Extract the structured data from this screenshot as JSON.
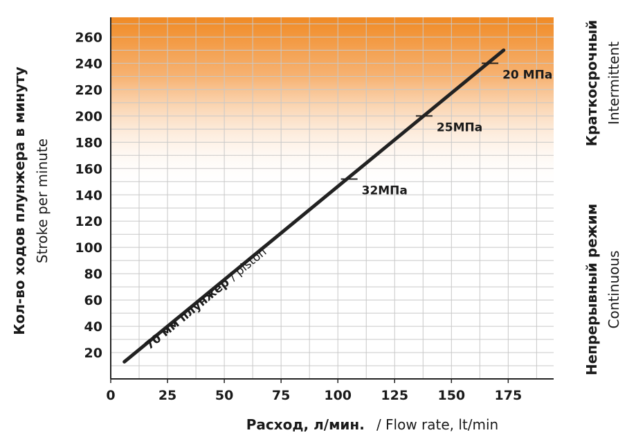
{
  "chart_data": {
    "type": "line",
    "x_axis": {
      "label_primary": "Расход, л/мин.",
      "label_secondary": "/ Flow rate, lt/min",
      "ticks": [
        0,
        25,
        50,
        75,
        100,
        125,
        150,
        175
      ],
      "range": [
        0,
        195
      ]
    },
    "y_axis": {
      "label_primary": "Кол-во ходов плунжера в минуту",
      "label_secondary": "Stroke per minute",
      "ticks": [
        20,
        40,
        60,
        80,
        100,
        120,
        140,
        160,
        180,
        200,
        220,
        240,
        260
      ],
      "range": [
        0,
        275
      ]
    },
    "grid": true,
    "regions": [
      {
        "label_primary": "Краткосрочный",
        "label_secondary": "Intermittent",
        "y_from": 145,
        "y_to": 275,
        "color": "#f08a24"
      },
      {
        "label_primary": "Непрерывный режим",
        "label_secondary": "Continuous",
        "y_from": 0,
        "y_to": 145
      }
    ],
    "series": [
      {
        "name_primary": "70 мм плунжер",
        "name_secondary": "/ piston",
        "color": "#222222",
        "points": [
          {
            "x": 6,
            "y": 13
          },
          {
            "x": 173,
            "y": 250
          }
        ]
      }
    ],
    "annotations": [
      {
        "text": "20 МПа",
        "x": 167,
        "y": 240
      },
      {
        "text": "25МПа",
        "x": 138,
        "y": 200
      },
      {
        "text": "32МПа",
        "x": 105,
        "y": 152
      }
    ]
  }
}
